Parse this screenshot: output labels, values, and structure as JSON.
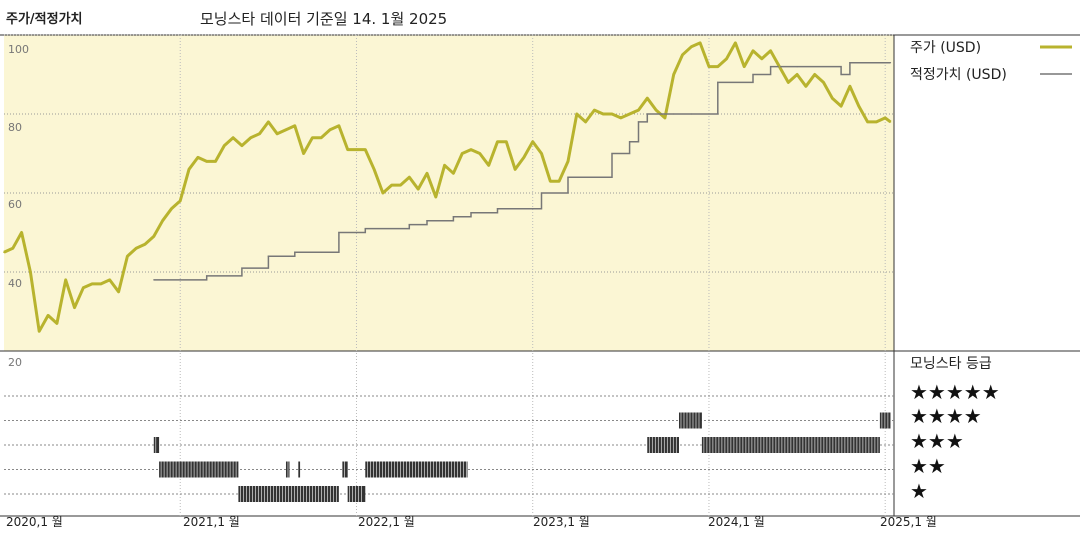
{
  "header": {
    "title": "주가/적정가치",
    "subtitle": "모닝스타 데이터 기준일 14. 1월 2025"
  },
  "legend": {
    "price_label": "주가 (USD)",
    "fair_label": "적정가치 (USD)",
    "rating_title": "모닝스타 등급",
    "stars": [
      "★★★★★",
      "★★★★",
      "★★★",
      "★★",
      "★"
    ]
  },
  "colors": {
    "price": "#b8b32e",
    "fair": "#777777",
    "panel": "#fbf6d4",
    "grid": "#bbbbbb",
    "rating": "#333333"
  },
  "chart_data": [
    {
      "type": "line",
      "title": "",
      "ylim": [
        20,
        100
      ],
      "yticks": [
        "100",
        "80",
        "60",
        "40",
        "20"
      ],
      "xticks": [
        "2020,1 월",
        "2021,1 월",
        "2022,1 월",
        "2023,1 월",
        "2024,1 월",
        "2025,1 월"
      ],
      "series": [
        {
          "name": "주가 (USD)",
          "x": [
            2020.0,
            2020.05,
            2020.1,
            2020.15,
            2020.2,
            2020.25,
            2020.3,
            2020.35,
            2020.4,
            2020.45,
            2020.5,
            2020.55,
            2020.6,
            2020.65,
            2020.7,
            2020.75,
            2020.8,
            2020.85,
            2020.9,
            2020.95,
            2021.0,
            2021.05,
            2021.1,
            2021.15,
            2021.2,
            2021.25,
            2021.3,
            2021.35,
            2021.4,
            2021.45,
            2021.5,
            2021.55,
            2021.6,
            2021.65,
            2021.7,
            2021.75,
            2021.8,
            2021.85,
            2021.9,
            2021.95,
            2022.0,
            2022.05,
            2022.1,
            2022.15,
            2022.2,
            2022.25,
            2022.3,
            2022.35,
            2022.4,
            2022.45,
            2022.5,
            2022.55,
            2022.6,
            2022.65,
            2022.7,
            2022.75,
            2022.8,
            2022.85,
            2022.9,
            2022.95,
            2023.0,
            2023.05,
            2023.1,
            2023.15,
            2023.2,
            2023.25,
            2023.3,
            2023.35,
            2023.4,
            2023.45,
            2023.5,
            2023.55,
            2023.6,
            2023.65,
            2023.7,
            2023.75,
            2023.8,
            2023.85,
            2023.9,
            2023.95,
            2024.0,
            2024.05,
            2024.1,
            2024.15,
            2024.2,
            2024.25,
            2024.3,
            2024.35,
            2024.4,
            2024.45,
            2024.5,
            2024.55,
            2024.6,
            2024.65,
            2024.7,
            2024.75,
            2024.8,
            2024.85,
            2024.9,
            2024.95,
            2025.0,
            2025.03
          ],
          "values": [
            45,
            46,
            50,
            40,
            25,
            29,
            27,
            38,
            31,
            36,
            37,
            37,
            38,
            35,
            44,
            46,
            47,
            49,
            53,
            56,
            58,
            66,
            69,
            68,
            68,
            72,
            74,
            72,
            74,
            75,
            78,
            75,
            76,
            77,
            70,
            74,
            74,
            76,
            77,
            71,
            71,
            71,
            66,
            60,
            62,
            62,
            64,
            61,
            65,
            59,
            67,
            65,
            70,
            71,
            70,
            67,
            73,
            73,
            66,
            69,
            73,
            70,
            63,
            63,
            68,
            80,
            78,
            81,
            80,
            80,
            79,
            80,
            81,
            84,
            81,
            79,
            90,
            95,
            97,
            98,
            92,
            92,
            94,
            98,
            92,
            96,
            94,
            96,
            92,
            88,
            90,
            87,
            90,
            88,
            84,
            82,
            87,
            82,
            78,
            78,
            79,
            78
          ]
        },
        {
          "name": "적정가치 (USD)",
          "x": [
            2020.85,
            2021.0,
            2021.15,
            2021.35,
            2021.5,
            2021.65,
            2021.8,
            2021.9,
            2022.05,
            2022.3,
            2022.4,
            2022.55,
            2022.65,
            2022.8,
            2023.05,
            2023.2,
            2023.45,
            2023.55,
            2023.6,
            2023.65,
            2023.7,
            2023.8,
            2023.9,
            2024.05,
            2024.25,
            2024.35,
            2024.5,
            2024.75,
            2024.8,
            2025.03
          ],
          "values": [
            38,
            38,
            39,
            41,
            44,
            45,
            45,
            50,
            51,
            52,
            53,
            54,
            55,
            56,
            60,
            64,
            70,
            73,
            78,
            80,
            80,
            80,
            80,
            88,
            90,
            92,
            92,
            90,
            93,
            93
          ]
        }
      ]
    },
    {
      "type": "bar",
      "title": "",
      "series_name": "모닝스타 등급",
      "levels": [
        1,
        2,
        3,
        4,
        5
      ],
      "ranges": [
        {
          "stars": 3,
          "start": 2020.85,
          "end": 2020.88
        },
        {
          "stars": 2,
          "start": 2020.88,
          "end": 2021.33
        },
        {
          "stars": 1,
          "start": 2021.33,
          "end": 2021.9
        },
        {
          "stars": 2,
          "start": 2021.6,
          "end": 2021.62
        },
        {
          "stars": 2,
          "start": 2021.67,
          "end": 2021.68
        },
        {
          "stars": 2,
          "start": 2021.92,
          "end": 2021.95
        },
        {
          "stars": 1,
          "start": 2021.95,
          "end": 2022.05
        },
        {
          "stars": 2,
          "start": 2022.05,
          "end": 2022.63
        },
        {
          "stars": 3,
          "start": 2023.65,
          "end": 2023.83
        },
        {
          "stars": 4,
          "start": 2023.83,
          "end": 2023.96
        },
        {
          "stars": 3,
          "start": 2023.96,
          "end": 2024.97
        },
        {
          "stars": 4,
          "start": 2024.97,
          "end": 2025.03
        }
      ]
    }
  ]
}
